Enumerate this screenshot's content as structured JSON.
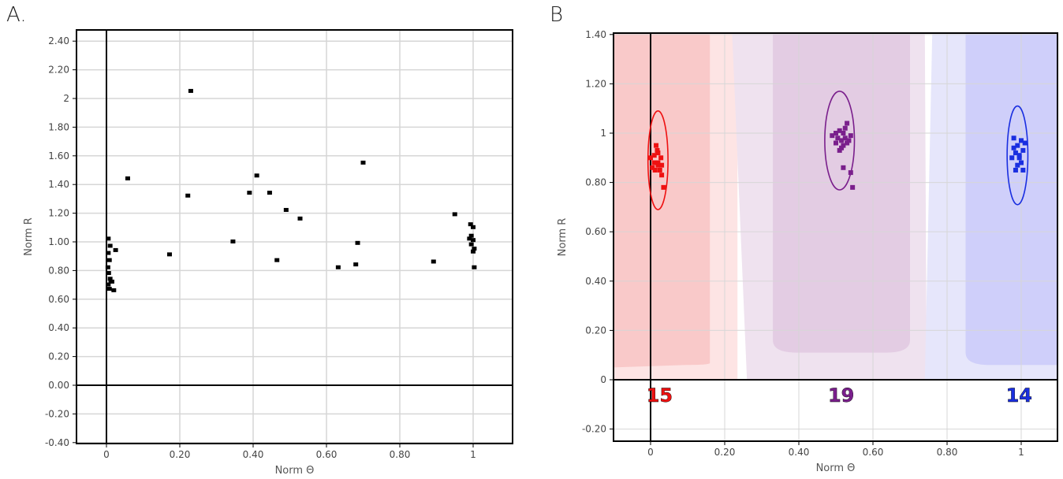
{
  "panels": {
    "a_label": "A.",
    "b_label": "B"
  },
  "colors": {
    "red": "#ee1111",
    "purple": "#7a1f8c",
    "blue": "#1a2fe0",
    "red_fill": "#f9c9c9",
    "red_light": "#fde4e4",
    "purple_fill": "#e3cce3",
    "purple_light": "#efe2ef",
    "blue_fill": "#cfcffa",
    "blue_light": "#e6e6fb",
    "grid": "#d6d6d6"
  },
  "chart_data": [
    {
      "type": "scatter",
      "xlabel": "Norm Θ",
      "ylabel": "Norm R",
      "xlim": [
        -0.1,
        1.1
      ],
      "ylim": [
        -0.4,
        2.45
      ],
      "x_ticks": [
        0,
        0.2,
        0.4,
        0.6,
        0.8,
        1
      ],
      "x_tick_labels": [
        "0",
        "0.20",
        "0.40",
        "0.60",
        "0.80",
        "1"
      ],
      "y_ticks": [
        -0.4,
        -0.2,
        0,
        0.2,
        0.4,
        0.6,
        0.8,
        1,
        1.2,
        1.4,
        1.6,
        1.8,
        2,
        2.2,
        2.4
      ],
      "y_tick_labels": [
        "-0.40",
        "-0.20",
        "0.00",
        "0.20",
        "0.40",
        "0.60",
        "0.80",
        "1.00",
        "1.20",
        "1.40",
        "1.60",
        "1.80",
        "2",
        "2.20",
        "2.40"
      ],
      "grid": true,
      "points": [
        [
          0.005,
          1.02
        ],
        [
          0.01,
          0.97
        ],
        [
          0.005,
          0.92
        ],
        [
          0.008,
          0.87
        ],
        [
          0.004,
          0.82
        ],
        [
          0.006,
          0.78
        ],
        [
          0.01,
          0.74
        ],
        [
          0.012,
          0.72
        ],
        [
          0.005,
          0.7
        ],
        [
          0.008,
          0.67
        ],
        [
          0.02,
          0.66
        ],
        [
          0.015,
          0.72
        ],
        [
          0.025,
          0.94
        ],
        [
          0.058,
          1.44
        ],
        [
          0.172,
          0.91
        ],
        [
          0.222,
          1.32
        ],
        [
          0.23,
          2.05
        ],
        [
          0.345,
          1.0
        ],
        [
          0.39,
          1.34
        ],
        [
          0.41,
          1.46
        ],
        [
          0.445,
          1.34
        ],
        [
          0.465,
          0.87
        ],
        [
          0.49,
          1.22
        ],
        [
          0.528,
          1.16
        ],
        [
          0.632,
          0.82
        ],
        [
          0.68,
          0.84
        ],
        [
          0.685,
          0.99
        ],
        [
          0.7,
          1.55
        ],
        [
          0.892,
          0.86
        ],
        [
          0.95,
          1.19
        ],
        [
          0.993,
          1.12
        ],
        [
          1.0,
          1.1
        ],
        [
          0.995,
          1.04
        ],
        [
          0.99,
          1.02
        ],
        [
          1.0,
          1.01
        ],
        [
          0.995,
          0.98
        ],
        [
          1.003,
          0.95
        ],
        [
          1.0,
          0.93
        ],
        [
          1.003,
          0.82
        ]
      ]
    },
    {
      "type": "scatter",
      "xlabel": "Norm Θ",
      "ylabel": "Norm R",
      "xlim": [
        -0.1,
        1.1
      ],
      "ylim": [
        -0.25,
        1.41
      ],
      "x_ticks": [
        0,
        0.2,
        0.4,
        0.6,
        0.8,
        1
      ],
      "x_tick_labels": [
        "0",
        "0.20",
        "0.40",
        "0.60",
        "0.80",
        "1"
      ],
      "y_ticks": [
        -0.2,
        0,
        0.2,
        0.4,
        0.6,
        0.8,
        1,
        1.2,
        1.4
      ],
      "y_tick_labels": [
        "-0.20",
        "0",
        "0.20",
        "0.40",
        "0.60",
        "0.80",
        "1",
        "1.20",
        "1.40"
      ],
      "grid": true,
      "region_boundaries": [
        0.16,
        0.33,
        0.7,
        0.85
      ],
      "clusters": [
        {
          "count": "15",
          "color": "red",
          "center": [
            0.02,
            0.89
          ],
          "radii": [
            0.027,
            0.2
          ],
          "points": [
            [
              0.0,
              0.9
            ],
            [
              0.01,
              0.88
            ],
            [
              0.02,
              0.87
            ],
            [
              0.015,
              0.95
            ],
            [
              0.02,
              0.92
            ],
            [
              0.005,
              0.86
            ],
            [
              0.025,
              0.85
            ],
            [
              0.03,
              0.83
            ],
            [
              0.035,
              0.78
            ],
            [
              0.01,
              0.91
            ],
            [
              0.02,
              0.88
            ],
            [
              0.028,
              0.9
            ],
            [
              0.012,
              0.85
            ],
            [
              0.018,
              0.93
            ],
            [
              0.03,
              0.87
            ]
          ]
        },
        {
          "count": "19",
          "color": "purple",
          "center": [
            0.51,
            0.97
          ],
          "radii": [
            0.04,
            0.2
          ],
          "points": [
            [
              0.49,
              0.99
            ],
            [
              0.5,
              0.96
            ],
            [
              0.51,
              1.01
            ],
            [
              0.515,
              0.97
            ],
            [
              0.52,
              0.95
            ],
            [
              0.525,
              0.98
            ],
            [
              0.53,
              1.04
            ],
            [
              0.535,
              0.97
            ],
            [
              0.51,
              0.93
            ],
            [
              0.5,
              1.0
            ],
            [
              0.52,
              1.0
            ],
            [
              0.53,
              0.96
            ],
            [
              0.54,
              0.99
            ],
            [
              0.52,
              0.86
            ],
            [
              0.54,
              0.84
            ],
            [
              0.545,
              0.78
            ],
            [
              0.505,
              0.98
            ],
            [
              0.525,
              1.02
            ],
            [
              0.515,
              0.94
            ]
          ]
        },
        {
          "count": "14",
          "color": "blue",
          "center": [
            0.99,
            0.91
          ],
          "radii": [
            0.028,
            0.2
          ],
          "points": [
            [
              0.98,
              0.98
            ],
            [
              0.99,
              0.95
            ],
            [
              1.0,
              0.97
            ],
            [
              0.985,
              0.92
            ],
            [
              0.995,
              0.9
            ],
            [
              1.005,
              0.93
            ],
            [
              0.975,
              0.9
            ],
            [
              0.99,
              0.87
            ],
            [
              1.0,
              0.88
            ],
            [
              0.985,
              0.85
            ],
            [
              1.005,
              0.85
            ],
            [
              0.995,
              0.91
            ],
            [
              0.98,
              0.94
            ],
            [
              1.01,
              0.96
            ]
          ]
        }
      ]
    }
  ]
}
